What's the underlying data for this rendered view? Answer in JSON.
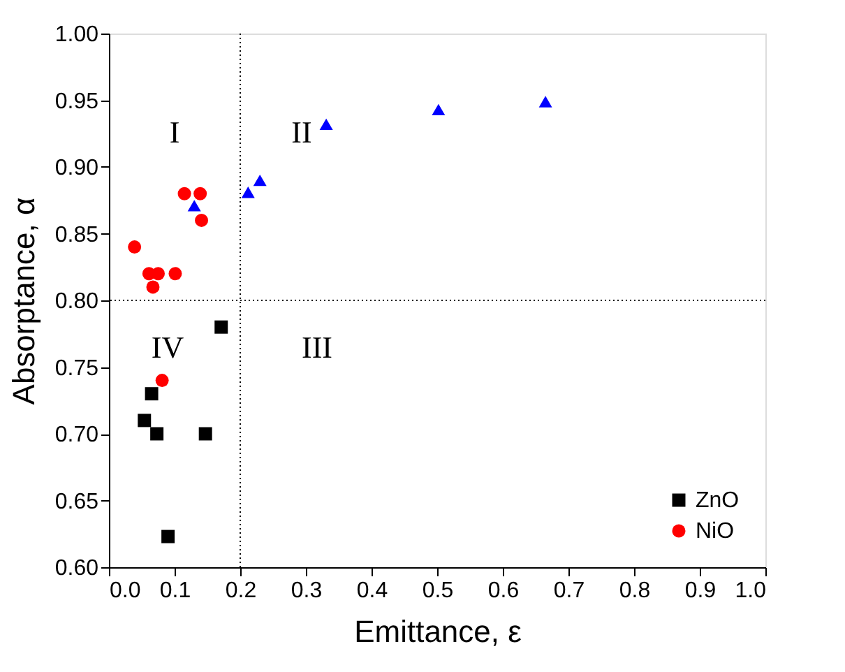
{
  "chart_data": {
    "type": "scatter",
    "xlabel": "Emittance, ε",
    "ylabel": "Absorptance, α",
    "xlim": [
      0,
      1
    ],
    "ylim": [
      0.6,
      1.0
    ],
    "xticks": [
      {
        "value": 0,
        "label": "0.0"
      },
      0.1,
      0.2,
      0.3,
      0.4,
      0.5,
      0.6,
      0.7,
      0.8,
      0.9,
      {
        "value": 1,
        "label": "1.0"
      }
    ],
    "yticks": [
      {
        "value": 0.6,
        "label": "0.60"
      },
      0.65,
      {
        "value": 0.7,
        "label": "0.70"
      },
      0.75,
      {
        "value": 0.8,
        "label": "0.80"
      },
      0.85,
      {
        "value": 0.9,
        "label": "0.90"
      },
      0.95,
      {
        "value": 1.0,
        "label": "1.00"
      }
    ],
    "grid": false,
    "legend": "bottom right",
    "series": [
      {
        "name": "ZnO",
        "color": "#000000",
        "marker": "square",
        "x": [
          0.065,
          0.054,
          0.073,
          0.147,
          0.171,
          0.09
        ],
        "values": [
          0.73,
          0.71,
          0.7,
          0.7,
          0.78,
          0.623
        ]
      },
      {
        "name": "NiO",
        "color": "#ff0000",
        "marker": "circle",
        "x": [
          0.039,
          0.061,
          0.075,
          0.067,
          0.101,
          0.115,
          0.139,
          0.141,
          0.081
        ],
        "values": [
          0.84,
          0.82,
          0.82,
          0.81,
          0.82,
          0.88,
          0.88,
          0.86,
          0.74
        ]
      },
      {
        "color": "#0000ff",
        "marker": "triangle",
        "x": [
          0.13,
          0.212,
          0.23,
          0.331,
          0.502,
          0.665
        ],
        "values": [
          0.871,
          0.881,
          0.89,
          0.932,
          0.943,
          0.949
        ]
      }
    ],
    "ref_lines": [
      {
        "axis": "x",
        "value": 0.2,
        "color": "#000000",
        "line_style": "dotted"
      },
      {
        "axis": "y",
        "value": 0.8,
        "color": "#000000",
        "line_style": "dotted"
      }
    ],
    "annotations": [
      "I",
      "II",
      "III",
      "IV"
    ]
  }
}
